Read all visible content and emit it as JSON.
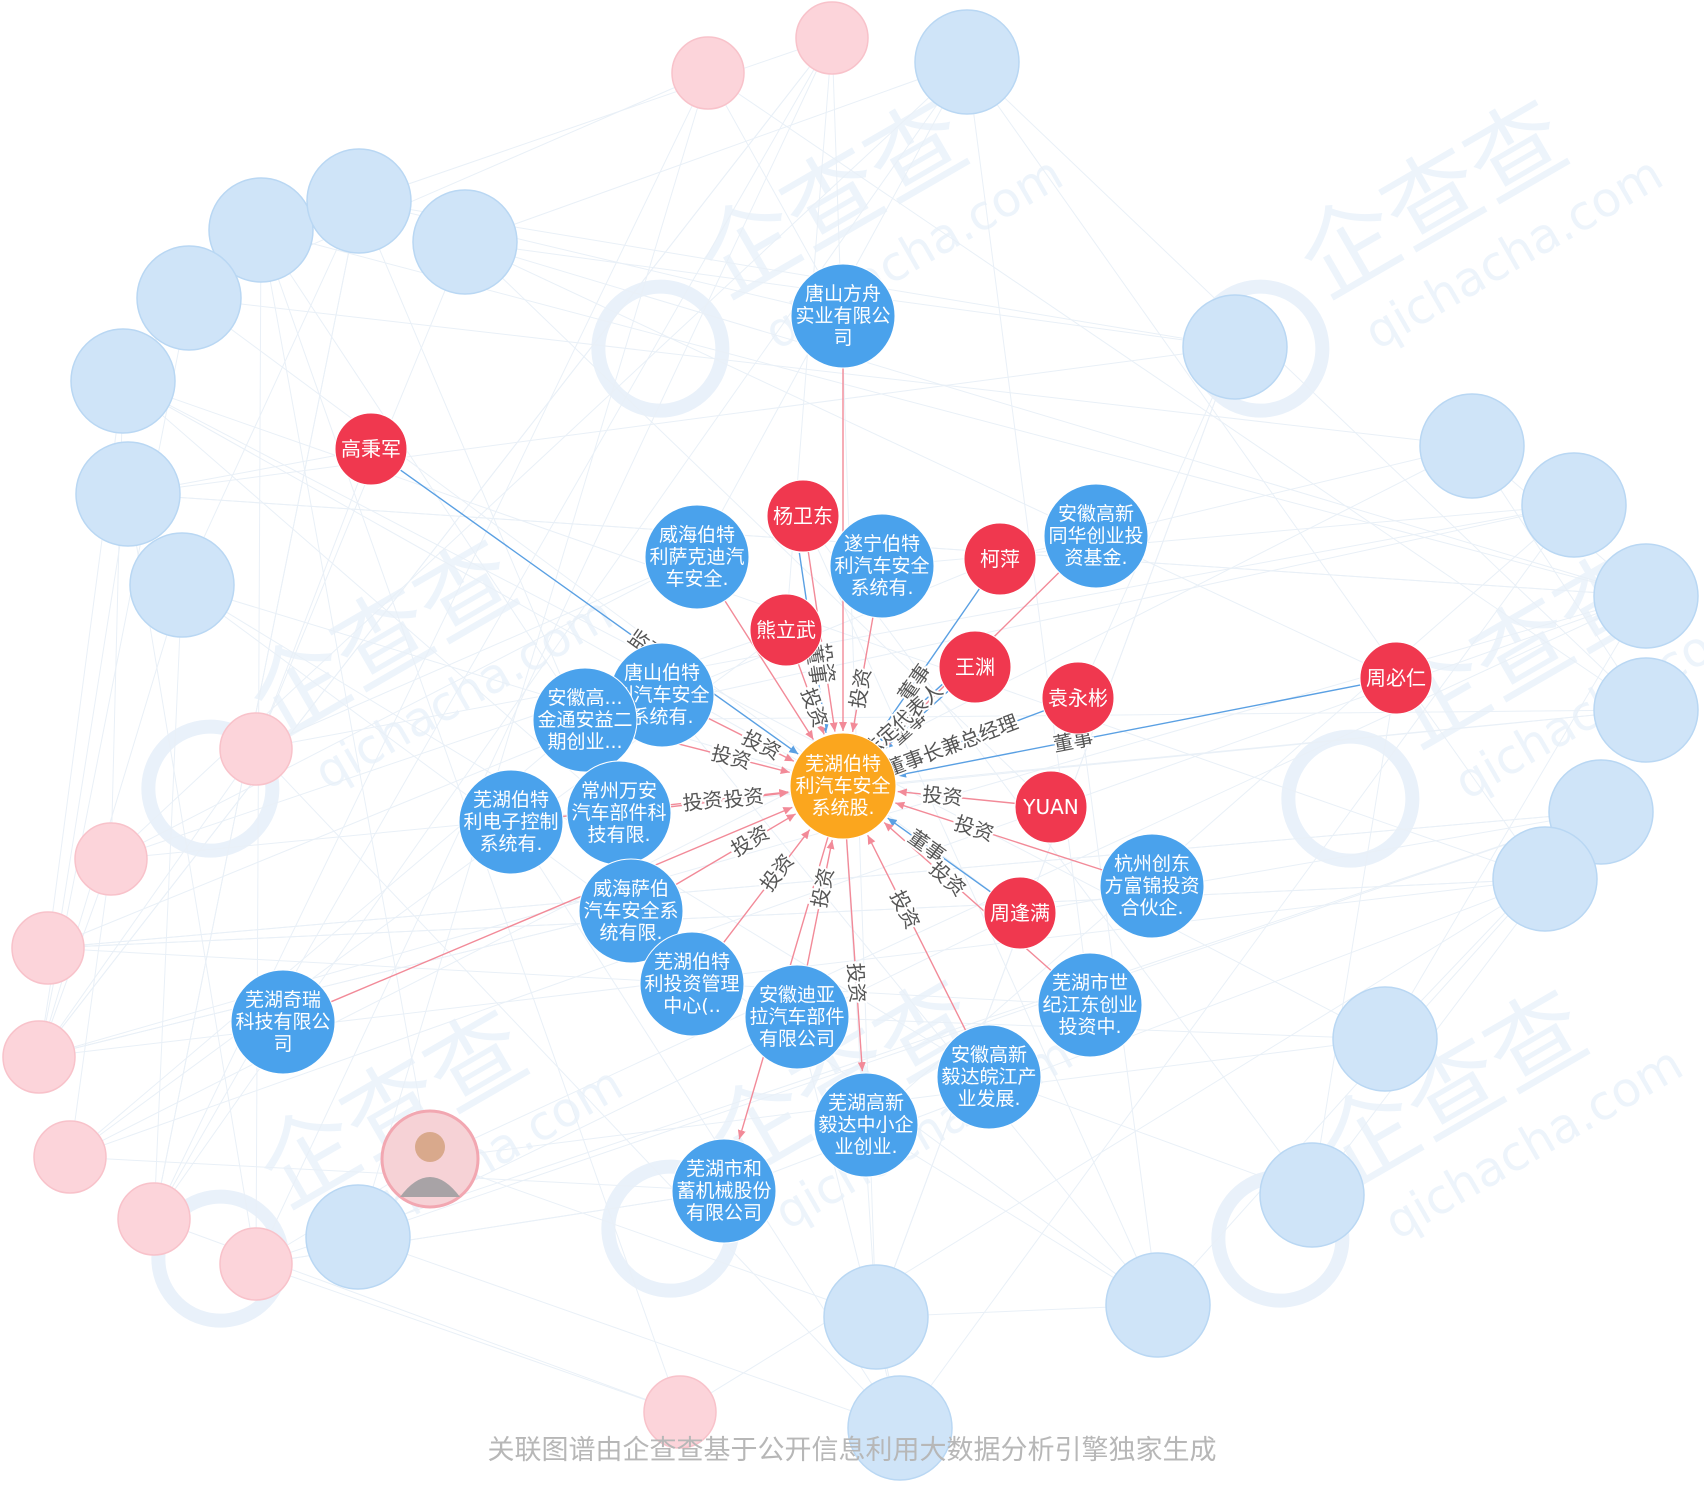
{
  "graph": {
    "colors": {
      "company": "#4aa2ec",
      "company_faded": "#cfe4f8",
      "person": "#f0384f",
      "person_faded": "#fcd4da",
      "focus": "#fba61e",
      "edge_invest": "#f28a98",
      "edge_role": "#5aa0e3",
      "edge_faded": "#e8eff6",
      "edge_label": "#555555",
      "node_text": "#ffffff"
    },
    "watermark": {
      "brand": "企查查",
      "domain": "qichacha.com"
    },
    "focus": {
      "name": "focus-node",
      "lines": [
        "芜湖伯特",
        "利汽车安全",
        "系统股."
      ]
    },
    "nodes": [
      {
        "id": "tangshan",
        "type": "company",
        "lines": [
          "唐山方舟",
          "实业有限公",
          "司"
        ]
      },
      {
        "id": "weihai-lsk",
        "type": "company",
        "lines": [
          "威海伯特",
          "利萨克迪汽",
          "车安全."
        ]
      },
      {
        "id": "suining",
        "type": "company",
        "lines": [
          "遂宁伯特",
          "利汽车安全",
          "系统有."
        ]
      },
      {
        "id": "tonghua",
        "type": "company",
        "lines": [
          "安徽高新",
          "同华创业投",
          "资基金."
        ]
      },
      {
        "id": "tangshan-bt",
        "type": "company",
        "lines": [
          "唐山伯特",
          "利汽车安全",
          "系统有."
        ]
      },
      {
        "id": "jintong",
        "type": "company",
        "lines": [
          "安徽高...",
          "金通安益二",
          "期创业..."
        ]
      },
      {
        "id": "changzhou",
        "type": "company",
        "lines": [
          "常州万安",
          "汽车部件科",
          "技有限."
        ]
      },
      {
        "id": "dianzi",
        "type": "company",
        "lines": [
          "芜湖伯特",
          "利电子控制",
          "系统有."
        ]
      },
      {
        "id": "weihai-sb",
        "type": "company",
        "lines": [
          "威海萨伯",
          "汽车安全系",
          "统有限."
        ]
      },
      {
        "id": "touzi",
        "type": "company",
        "lines": [
          "芜湖伯特",
          "利投资管理",
          "中心(.."
        ]
      },
      {
        "id": "dila",
        "type": "company",
        "lines": [
          "安徽迪亚",
          "拉汽车部件",
          "有限公司"
        ]
      },
      {
        "id": "yida",
        "type": "company",
        "lines": [
          "芜湖高新",
          "毅达中小企",
          "业创业."
        ]
      },
      {
        "id": "wanjiang",
        "type": "company",
        "lines": [
          "安徽高新",
          "毅达皖江产",
          "业发展."
        ]
      },
      {
        "id": "jijiang",
        "type": "company",
        "lines": [
          "芜湖市世",
          "纪江东创业",
          "投资中."
        ]
      },
      {
        "id": "chuangdong",
        "type": "company",
        "lines": [
          "杭州创东",
          "方富锦投资",
          "合伙企."
        ]
      },
      {
        "id": "qirui",
        "type": "company",
        "lines": [
          "芜湖奇瑞",
          "科技有限公",
          "司"
        ]
      },
      {
        "id": "hexu",
        "type": "company",
        "lines": [
          "芜湖市和",
          "蓄机械股份",
          "有限公司"
        ]
      },
      {
        "id": "yang",
        "type": "person",
        "lines": [
          "杨卫东"
        ]
      },
      {
        "id": "xiong",
        "type": "person",
        "lines": [
          "熊立武"
        ]
      },
      {
        "id": "keping",
        "type": "person",
        "lines": [
          "柯萍"
        ]
      },
      {
        "id": "wangyuan",
        "type": "person",
        "lines": [
          "王渊"
        ]
      },
      {
        "id": "yuan-ys",
        "type": "person",
        "lines": [
          "袁永彬"
        ]
      },
      {
        "id": "yuan",
        "type": "person",
        "lines": [
          "YUAN"
        ]
      },
      {
        "id": "zhou-fm",
        "type": "person",
        "lines": [
          "周逢满"
        ]
      },
      {
        "id": "zhou-br",
        "type": "person",
        "lines": [
          "周必仁"
        ]
      },
      {
        "id": "gao",
        "type": "person",
        "lines": [
          "高秉军"
        ]
      }
    ],
    "edges": [
      {
        "from": "tangshan",
        "to": "focus",
        "kind": "invest",
        "label": ""
      },
      {
        "from": "gao",
        "to": "focus",
        "kind": "role",
        "label": "监事"
      },
      {
        "from": "yang",
        "to": "focus",
        "kind": "invest",
        "label": "投资"
      },
      {
        "from": "yang",
        "to": "focus",
        "kind": "role",
        "label": "董事"
      },
      {
        "from": "xiong",
        "to": "focus",
        "kind": "invest",
        "label": "投资"
      },
      {
        "from": "suining",
        "to": "focus",
        "kind": "invest",
        "label": "投资"
      },
      {
        "from": "keping",
        "to": "focus",
        "kind": "role",
        "label": "董事"
      },
      {
        "from": "wangyuan",
        "to": "focus",
        "kind": "role",
        "label": "董事"
      },
      {
        "from": "wangyuan",
        "to": "focus",
        "kind": "role",
        "label": "法定代表人"
      },
      {
        "from": "tonghua",
        "to": "focus",
        "kind": "invest",
        "label": ""
      },
      {
        "from": "yuan-ys",
        "to": "focus",
        "kind": "role",
        "label": "董事长兼总经理"
      },
      {
        "from": "zhou-br",
        "to": "focus",
        "kind": "role",
        "label": "董事"
      },
      {
        "from": "yuan",
        "to": "focus",
        "kind": "invest",
        "label": "投资"
      },
      {
        "from": "chuangdong",
        "to": "focus",
        "kind": "invest",
        "label": "投资"
      },
      {
        "from": "zhou-fm",
        "to": "focus",
        "kind": "role",
        "label": "董事"
      },
      {
        "from": "jijiang",
        "to": "focus",
        "kind": "invest",
        "label": "投资"
      },
      {
        "from": "wanjiang",
        "to": "focus",
        "kind": "invest",
        "label": "投资"
      },
      {
        "from": "focus",
        "to": "yida",
        "kind": "invest",
        "label": "投资"
      },
      {
        "from": "dila",
        "to": "focus",
        "kind": "invest",
        "label": "投资"
      },
      {
        "from": "touzi",
        "to": "focus",
        "kind": "invest",
        "label": "投资"
      },
      {
        "from": "weihai-sb",
        "to": "focus",
        "kind": "invest",
        "label": "投资"
      },
      {
        "from": "qirui",
        "to": "focus",
        "kind": "invest",
        "label": "投资"
      },
      {
        "from": "dianzi",
        "to": "focus",
        "kind": "invest",
        "label": "投资"
      },
      {
        "from": "changzhou",
        "to": "focus",
        "kind": "invest",
        "label": "投资"
      },
      {
        "from": "jintong",
        "to": "focus",
        "kind": "invest",
        "label": "投资"
      },
      {
        "from": "tangshan-bt",
        "to": "focus",
        "kind": "invest",
        "label": "投资"
      },
      {
        "from": "weihai-lsk",
        "to": "focus",
        "kind": "invest",
        "label": ""
      },
      {
        "from": "focus",
        "to": "hexu",
        "kind": "invest",
        "label": ""
      }
    ]
  },
  "footer": {
    "text": "关联图谱由企查查基于公开信息利用大数据分析引擎独家生成"
  }
}
